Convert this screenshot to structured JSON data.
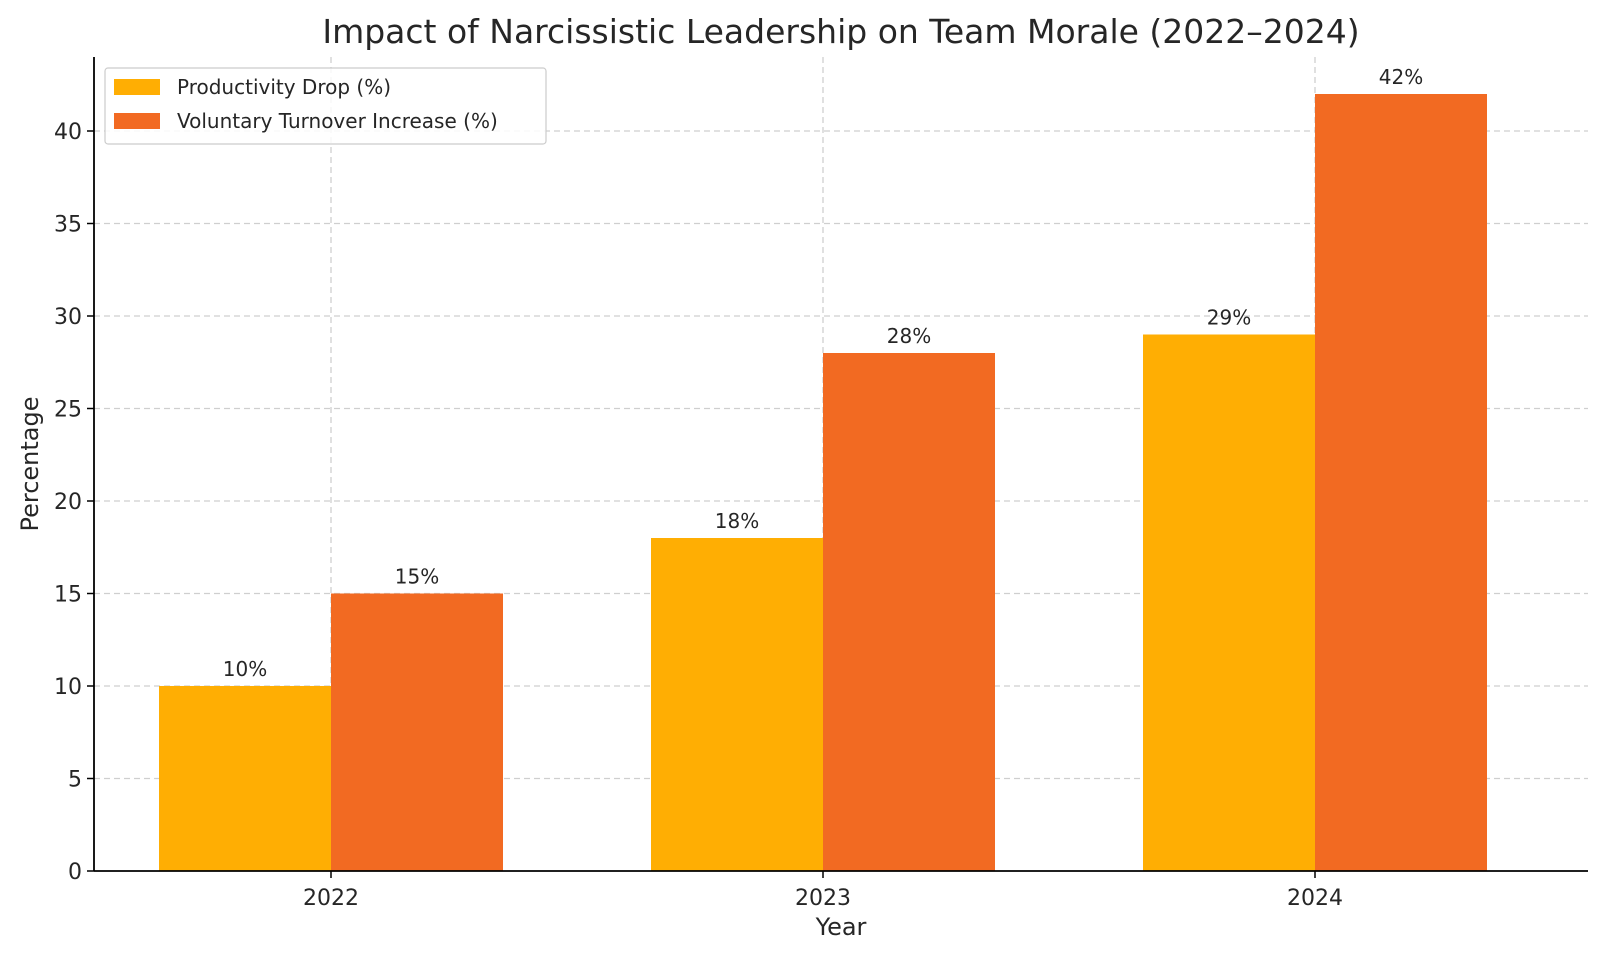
{
  "chart_data": {
    "type": "bar",
    "title": "Impact of Narcissistic Leadership on Team Morale (2022–2024)",
    "xlabel": "Year",
    "ylabel": "Percentage",
    "categories": [
      "2022",
      "2023",
      "2024"
    ],
    "series": [
      {
        "name": "Productivity Drop (%)",
        "values": [
          10,
          18,
          29
        ],
        "labels": [
          "10%",
          "18%",
          "29%"
        ],
        "color": "#FFAE03"
      },
      {
        "name": "Voluntary Turnover Increase (%)",
        "values": [
          15,
          28,
          42
        ],
        "labels": [
          "15%",
          "28%",
          "42%"
        ],
        "color": "#F26A22"
      }
    ],
    "ylim": [
      0,
      44
    ],
    "yticks": [
      0,
      5,
      10,
      15,
      20,
      25,
      30,
      35,
      40
    ],
    "grid": true,
    "legend": "top-left"
  }
}
